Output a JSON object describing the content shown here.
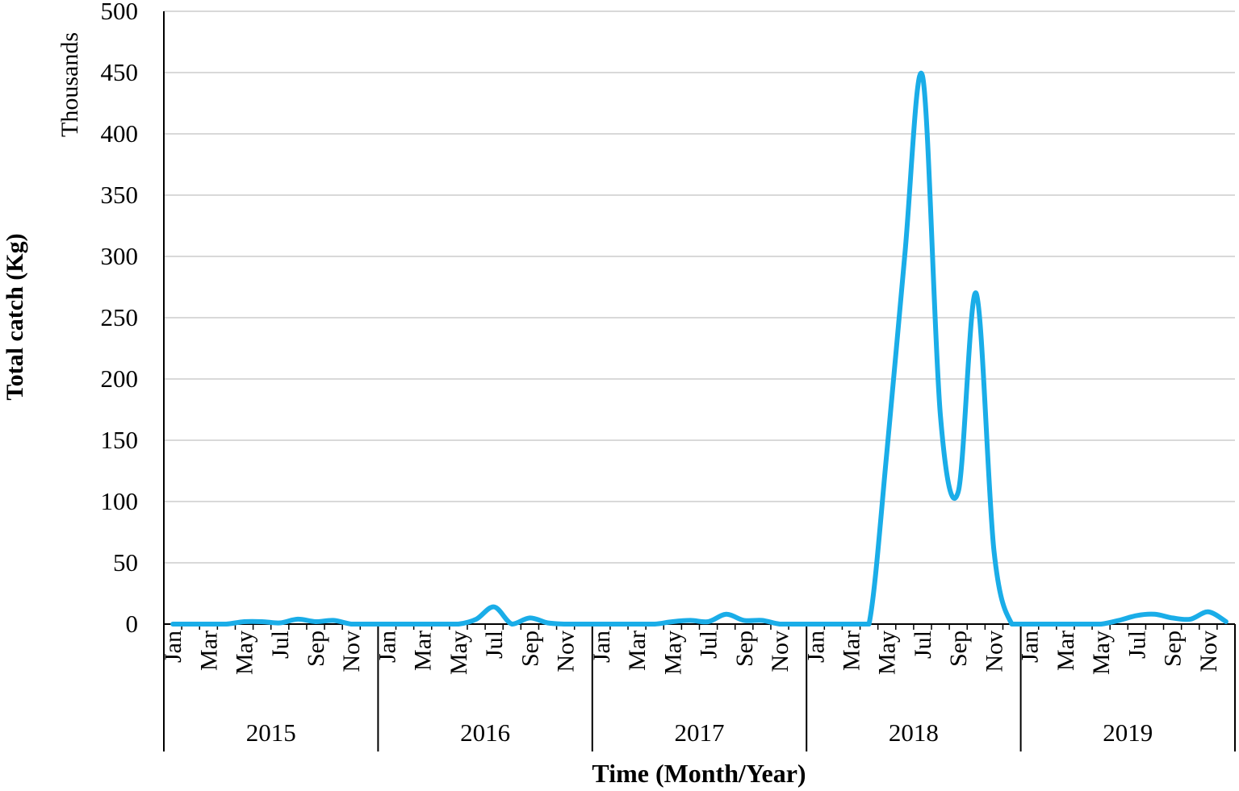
{
  "chart_data": {
    "type": "line",
    "ylabel": "Total catch (Kg)",
    "yunit_label": "Thousands",
    "xlabel": "Time (Month/Year)",
    "ylim": [
      0,
      500
    ],
    "yticks": [
      0,
      50,
      100,
      150,
      200,
      250,
      300,
      350,
      400,
      450,
      500
    ],
    "grid": true,
    "years": [
      "2015",
      "2016",
      "2017",
      "2018",
      "2019"
    ],
    "month_tick_labels": [
      "Jan",
      "Mar",
      "May",
      "Jul",
      "Sep",
      "Nov"
    ],
    "months_per_year": 12,
    "line_color": "#1AADE8",
    "series": [
      {
        "values": [
          0,
          0,
          0,
          0,
          2,
          2,
          1,
          4,
          2,
          3,
          0,
          0,
          0,
          0,
          0,
          0,
          0,
          4,
          14,
          0,
          5,
          1,
          0,
          0,
          0,
          0,
          0,
          0,
          2,
          3,
          2,
          8,
          3,
          3,
          0,
          0,
          0,
          0,
          0,
          0,
          140,
          300,
          447,
          170,
          108,
          270,
          60,
          0,
          0,
          0,
          0,
          0,
          0,
          3,
          7,
          8,
          5,
          4,
          10,
          2
        ]
      }
    ]
  }
}
